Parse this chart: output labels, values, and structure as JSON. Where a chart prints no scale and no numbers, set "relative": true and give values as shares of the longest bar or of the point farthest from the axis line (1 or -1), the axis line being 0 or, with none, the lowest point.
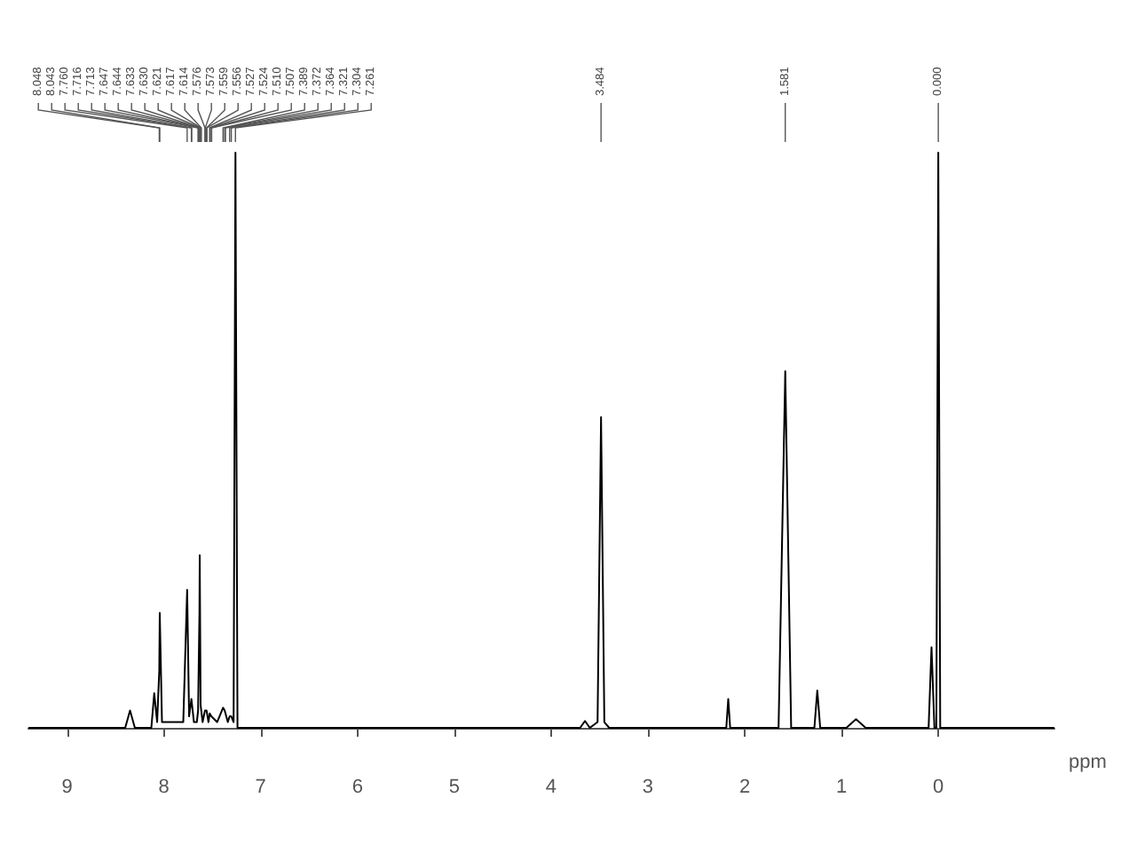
{
  "chart_data": {
    "type": "line",
    "relative": true,
    "xlabel": "ppm",
    "xlim": [
      9.4,
      -1.2
    ],
    "xticks": [
      9,
      8,
      7,
      6,
      5,
      4,
      3,
      2,
      1,
      0
    ],
    "grid": false,
    "marker": "none",
    "line_style": "solid",
    "series": [
      {
        "color": "#000000",
        "x": [
          9.4,
          8.4,
          8.35,
          8.3,
          8.13,
          8.1,
          8.07,
          8.048,
          8.043,
          8.02,
          7.8,
          7.76,
          7.74,
          7.716,
          7.713,
          7.69,
          7.66,
          7.647,
          7.644,
          7.633,
          7.63,
          7.621,
          7.617,
          7.614,
          7.6,
          7.576,
          7.573,
          7.559,
          7.556,
          7.54,
          7.527,
          7.524,
          7.51,
          7.507,
          7.45,
          7.389,
          7.372,
          7.364,
          7.34,
          7.321,
          7.304,
          7.28,
          7.261,
          7.24,
          3.7,
          3.65,
          3.6,
          3.52,
          3.484,
          3.45,
          3.4,
          2.19,
          2.17,
          2.15,
          1.65,
          1.581,
          1.52,
          1.28,
          1.25,
          1.22,
          0.95,
          0.85,
          0.75,
          0.1,
          0.07,
          0.04,
          0.02,
          0,
          -0.02,
          -1.2
        ],
        "values": [
          0,
          0,
          0.03,
          0,
          0,
          0.06,
          0.01,
          0.1,
          0.2,
          0.01,
          0.01,
          0.24,
          0.02,
          0.05,
          0.05,
          0.01,
          0.01,
          0.03,
          0.03,
          0.2,
          0.3,
          0.04,
          0.04,
          0.04,
          0.01,
          0.03,
          0.03,
          0.03,
          0.03,
          0.01,
          0.025,
          0.025,
          0.02,
          0.02,
          0.01,
          0.035,
          0.03,
          0.03,
          0.01,
          0.02,
          0.02,
          0.01,
          1,
          0,
          0,
          0.012,
          0,
          0.01,
          0.54,
          0.01,
          0,
          0,
          0.05,
          0,
          0,
          0.62,
          0,
          0,
          0.065,
          0,
          0,
          0.015,
          0,
          0,
          0.14,
          0,
          0,
          1,
          0,
          0
        ]
      }
    ],
    "annotations": [
      {
        "text": "8.048",
        "x": 8.048
      },
      {
        "text": "8.043",
        "x": 8.043
      },
      {
        "text": "7.760",
        "x": 7.76
      },
      {
        "text": "7.716",
        "x": 7.716
      },
      {
        "text": "7.713",
        "x": 7.713
      },
      {
        "text": "7.647",
        "x": 7.647
      },
      {
        "text": "7.644",
        "x": 7.644
      },
      {
        "text": "7.633",
        "x": 7.633
      },
      {
        "text": "7.630",
        "x": 7.63
      },
      {
        "text": "7.621",
        "x": 7.621
      },
      {
        "text": "7.617",
        "x": 7.617
      },
      {
        "text": "7.614",
        "x": 7.614
      },
      {
        "text": "7.576",
        "x": 7.576
      },
      {
        "text": "7.573",
        "x": 7.573
      },
      {
        "text": "7.559",
        "x": 7.559
      },
      {
        "text": "7.556",
        "x": 7.556
      },
      {
        "text": "7.527",
        "x": 7.527
      },
      {
        "text": "7.524",
        "x": 7.524
      },
      {
        "text": "7.510",
        "x": 7.51
      },
      {
        "text": "7.507",
        "x": 7.507
      },
      {
        "text": "7.389",
        "x": 7.389
      },
      {
        "text": "7.372",
        "x": 7.372
      },
      {
        "text": "7.364",
        "x": 7.364
      },
      {
        "text": "7.321",
        "x": 7.321
      },
      {
        "text": "7.304",
        "x": 7.304
      },
      {
        "text": "7.261",
        "x": 7.261
      },
      {
        "text": "3.484",
        "x": 3.484
      },
      {
        "text": "1.581",
        "x": 1.581
      },
      {
        "text": "0.000",
        "x": 0
      }
    ]
  }
}
